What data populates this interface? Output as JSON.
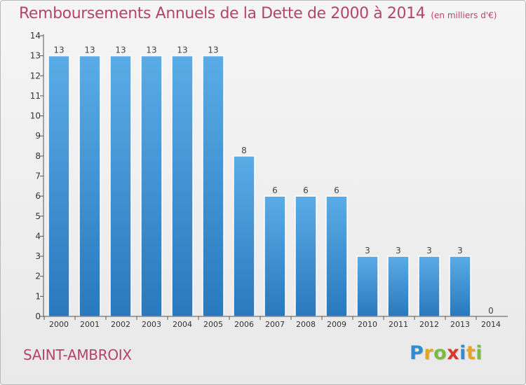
{
  "title": "Remboursements Annuels de la Dette de 2000 à 2014",
  "subtitle": "(en milliers d'€)",
  "commune": "SAINT-AMBROIX",
  "brand": {
    "letters": [
      "P",
      "r",
      "o",
      "x",
      "i",
      "t",
      "i"
    ],
    "colors": [
      "#2f8ed0",
      "#e8a321",
      "#7abc43",
      "#d43a2f",
      "#2f8ed0",
      "#e8a321",
      "#7abc43"
    ]
  },
  "colors": {
    "title": "#b5446a",
    "bar_top": "#5aace6",
    "bar_bottom": "#2a78bd",
    "axis": "#555555"
  },
  "chart_data": {
    "type": "bar",
    "categories": [
      "2000",
      "2001",
      "2002",
      "2003",
      "2004",
      "2005",
      "2006",
      "2007",
      "2008",
      "2009",
      "2010",
      "2011",
      "2012",
      "2013",
      "2014"
    ],
    "values": [
      13,
      13,
      13,
      13,
      13,
      13,
      8,
      6,
      6,
      6,
      3,
      3,
      3,
      3,
      0
    ],
    "yticks": [
      0,
      1,
      2,
      3,
      4,
      5,
      6,
      7,
      8,
      9,
      10,
      11,
      12,
      13,
      14
    ],
    "ylim": [
      0,
      14
    ],
    "grid": false,
    "data_labels": true
  }
}
